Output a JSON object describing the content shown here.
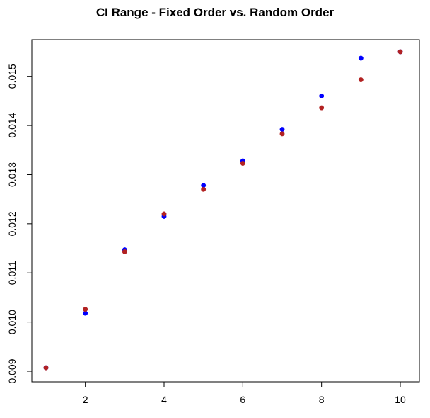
{
  "chart_data": {
    "type": "scatter",
    "title": "CI Range - Fixed Order vs. Random Order",
    "xlabel": "",
    "ylabel": "",
    "xlim": [
      1,
      10
    ],
    "ylim": [
      0.009,
      0.0155
    ],
    "x_ticks": [
      2,
      4,
      6,
      8,
      10
    ],
    "y_ticks": [
      0.009,
      0.01,
      0.011,
      0.012,
      0.013,
      0.014,
      0.015
    ],
    "x_tick_labels": [
      "2",
      "4",
      "6",
      "8",
      "10"
    ],
    "y_tick_labels": [
      "0.009",
      "0.010",
      "0.011",
      "0.012",
      "0.013",
      "0.014",
      "0.015"
    ],
    "grid": false,
    "series": [
      {
        "color": "#0000ff",
        "x": [
          1,
          2,
          3,
          4,
          5,
          6,
          7,
          8,
          9,
          10
        ],
        "y": [
          0.00907,
          0.01018,
          0.01147,
          0.01215,
          0.01278,
          0.01328,
          0.01392,
          0.0146,
          0.01537,
          0.0155
        ]
      },
      {
        "color": "#b22222",
        "x": [
          1,
          2,
          3,
          4,
          5,
          6,
          7,
          8,
          9,
          10
        ],
        "y": [
          0.00907,
          0.01026,
          0.01143,
          0.0122,
          0.0127,
          0.01323,
          0.01383,
          0.01436,
          0.01493,
          0.0155
        ]
      }
    ]
  }
}
